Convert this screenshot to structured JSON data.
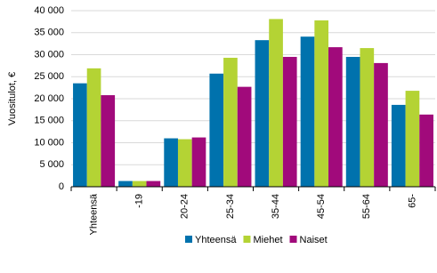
{
  "chart_data": {
    "type": "bar",
    "y_label": "Vuositulot, €",
    "categories": [
      "Yhteensä",
      "-19",
      "20-24",
      "25-34",
      "35-44",
      "45-54",
      "55-64",
      "65-"
    ],
    "series": [
      {
        "name": "Yhteensä",
        "color": "#0072ad",
        "values": [
          23500,
          1300,
          11000,
          25700,
          33300,
          34100,
          29500,
          18600
        ]
      },
      {
        "name": "Miehet",
        "color": "#b4d334",
        "values": [
          26900,
          1300,
          10800,
          29300,
          38100,
          37800,
          31500,
          21800
        ]
      },
      {
        "name": "Naiset",
        "color": "#a10a7b",
        "values": [
          20800,
          1300,
          11200,
          22700,
          29500,
          31700,
          28100,
          16400
        ]
      }
    ],
    "ylim": [
      0,
      40000
    ],
    "yticks": [
      {
        "value": 0,
        "label": "0"
      },
      {
        "value": 5000,
        "label": "5 000"
      },
      {
        "value": 10000,
        "label": "10 000"
      },
      {
        "value": 15000,
        "label": "15 000"
      },
      {
        "value": 20000,
        "label": "20 000"
      },
      {
        "value": 25000,
        "label": "25 000"
      },
      {
        "value": 30000,
        "label": "30 000"
      },
      {
        "value": 35000,
        "label": "35 000"
      },
      {
        "value": 40000,
        "label": "40 000"
      }
    ],
    "grid": true,
    "legend": "bottom"
  }
}
